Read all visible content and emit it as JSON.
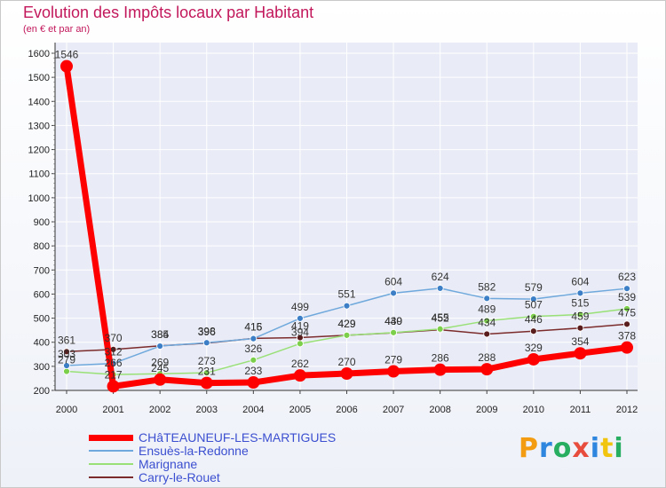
{
  "title": "Evolution des Impôts locaux par Habitant",
  "subtitle": "(en € et par an)",
  "logo_text": "Proxiti",
  "chart_data": {
    "type": "line",
    "title": "Evolution des Impôts locaux par Habitant",
    "ylabel": "(en € et par an)",
    "xlabel": "",
    "ylim": [
      200,
      1600
    ],
    "yticks": [
      200,
      300,
      400,
      500,
      600,
      700,
      800,
      900,
      1000,
      1100,
      1200,
      1300,
      1400,
      1500,
      1600
    ],
    "categories": [
      "2000",
      "2001",
      "2002",
      "2003",
      "2004",
      "2005",
      "2006",
      "2007",
      "2008",
      "2009",
      "2010",
      "2011",
      "2012"
    ],
    "series": [
      {
        "name": "CHâTEAUNEUF-LES-MARTIGUES",
        "color": "#ff0000",
        "values": [
          1546,
          217,
          245,
          231,
          233,
          262,
          270,
          279,
          286,
          288,
          329,
          354,
          378
        ]
      },
      {
        "name": "Ensuès-la-Redonne",
        "color": "#6fa8dc",
        "values": [
          303,
          312,
          384,
          398,
          415,
          499,
          551,
          604,
          624,
          582,
          579,
          604,
          623
        ]
      },
      {
        "name": "Marignane",
        "color": "#99e077",
        "values": [
          279,
          266,
          269,
          273,
          326,
          394,
          429,
          440,
          455,
          489,
          507,
          515,
          539
        ]
      },
      {
        "name": "Carry-le-Rouet",
        "color": "#7b2b2b",
        "values": [
          361,
          370,
          385,
          396,
          416,
          419,
          429,
          439,
          452,
          434,
          446,
          459,
          475
        ]
      }
    ]
  }
}
